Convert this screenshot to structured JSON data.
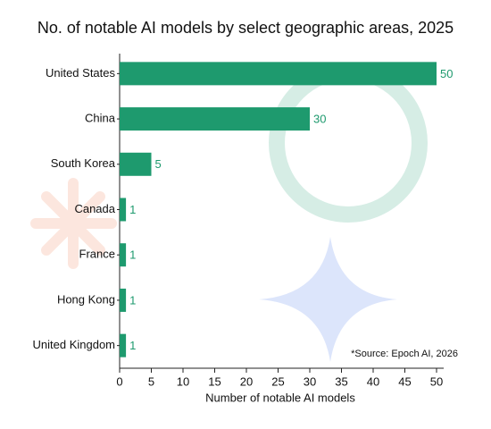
{
  "chart_data": {
    "type": "barh",
    "title": "No. of notable AI models by select geographic areas, 2025",
    "categories": [
      "United States",
      "China",
      "South Korea",
      "Canada",
      "France",
      "Hong Kong",
      "United Kingdom"
    ],
    "values": [
      50,
      30,
      5,
      1,
      1,
      1,
      1
    ],
    "color": "#1e9a6e",
    "xlim": [
      0,
      50
    ],
    "xticks": [
      0,
      5,
      10,
      15,
      20,
      25,
      30,
      35,
      40,
      45,
      50
    ],
    "xlabel": "Number of notable AI models",
    "annotation": "*Source: Epoch AI, 2026"
  }
}
